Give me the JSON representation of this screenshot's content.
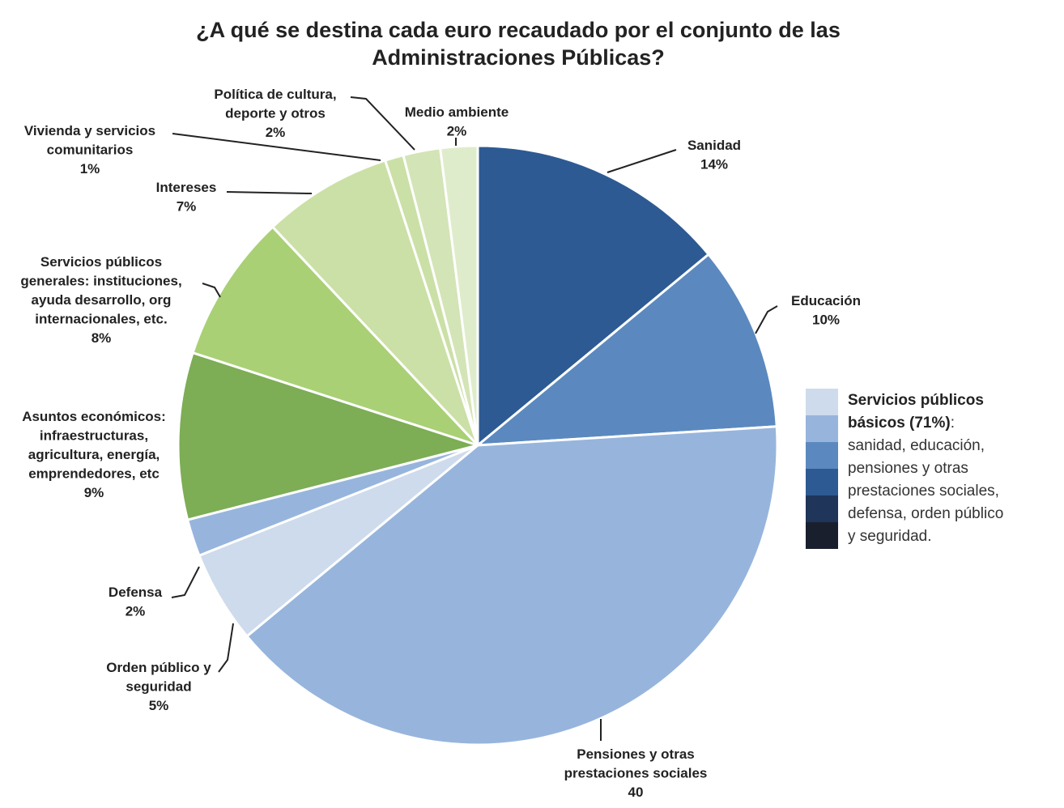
{
  "chart_data": {
    "type": "pie",
    "title": [
      "¿A qué se destina cada euro recaudado por el conjunto de las",
      "Administraciones Públicas?"
    ],
    "slices": [
      {
        "id": "sanidad",
        "label_lines": [
          "Sanidad"
        ],
        "value_text": "14%",
        "value": 14,
        "color": "#2d5a93"
      },
      {
        "id": "educacion",
        "label_lines": [
          "Educación"
        ],
        "value_text": "10%",
        "value": 10,
        "color": "#5b89bf"
      },
      {
        "id": "pensiones",
        "label_lines": [
          "Pensiones y otras",
          "prestaciones sociales"
        ],
        "value_text": "40",
        "value": 40,
        "color": "#97b5dc"
      },
      {
        "id": "orden-publico",
        "label_lines": [
          "Orden público y",
          "seguridad"
        ],
        "value_text": "5%",
        "value": 5,
        "color": "#cedbec"
      },
      {
        "id": "defensa",
        "label_lines": [
          "Defensa"
        ],
        "value_text": "2%",
        "value": 2,
        "color": "#97b5dc"
      },
      {
        "id": "asuntos-economicos",
        "label_lines": [
          "Asuntos económicos:",
          "infraestructuras,",
          "agricultura, energía,",
          "emprendedores, etc"
        ],
        "value_text": "9%",
        "value": 9,
        "color": "#7dad55"
      },
      {
        "id": "servicios-generales",
        "label_lines": [
          "Servicios públicos",
          "generales: instituciones,",
          "ayuda desarrollo, org",
          "internacionales, etc."
        ],
        "value_text": "8%",
        "value": 8,
        "color": "#a9d075"
      },
      {
        "id": "intereses",
        "label_lines": [
          "Intereses"
        ],
        "value_text": "7%",
        "value": 7,
        "color": "#cbe0a6"
      },
      {
        "id": "vivienda",
        "label_lines": [
          "Vivienda y  servicios",
          "comunitarios"
        ],
        "value_text": "1%",
        "value": 1,
        "color": "#cbe0a6"
      },
      {
        "id": "cultura",
        "label_lines": [
          "Política de cultura,",
          "deporte y otros"
        ],
        "value_text": "2%",
        "value": 2,
        "color": "#d3e4b6"
      },
      {
        "id": "medio-ambiente",
        "label_lines": [
          "Medio ambiente"
        ],
        "value_text": "2%",
        "value": 2,
        "color": "#dfeccb"
      }
    ],
    "legend": {
      "bold_lines": [
        "Servicios públicos",
        "básicos (71%)"
      ],
      "suffix": ":",
      "lines": [
        "sanidad, educación,",
        "pensiones y otras",
        "prestaciones sociales,",
        "defensa, orden público",
        "y seguridad."
      ],
      "swatches": [
        "#cedbec",
        "#97b5dc",
        "#5b89bf",
        "#2d5a93",
        "#1f3559",
        "#1a1f2e"
      ],
      "placement": "right"
    }
  }
}
